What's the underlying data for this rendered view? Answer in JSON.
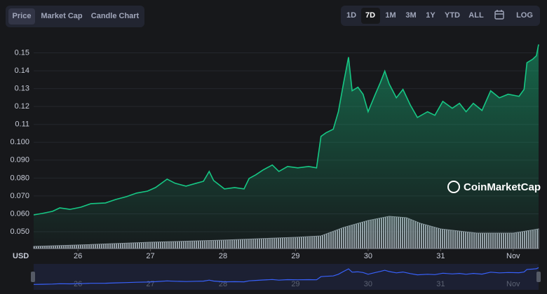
{
  "tabs": [
    "Price",
    "Market Cap",
    "Candle Chart"
  ],
  "ranges": [
    "1D",
    "7D",
    "1M",
    "3M",
    "1Y",
    "YTD",
    "ALL"
  ],
  "log_button": "LOG",
  "currency": "USD",
  "watermark": "CoinMarketCap",
  "chart_data": {
    "type": "area",
    "x": [
      25.39,
      25.51,
      25.65,
      25.75,
      25.89,
      26.04,
      26.18,
      26.38,
      26.52,
      26.67,
      26.81,
      26.96,
      27.07,
      27.23,
      27.34,
      27.49,
      27.63,
      27.73,
      27.81,
      27.87,
      28.02,
      28.16,
      28.29,
      28.36,
      28.45,
      28.55,
      28.68,
      28.77,
      28.89,
      29.03,
      29.18,
      29.29,
      29.35,
      29.42,
      29.52,
      29.59,
      29.66,
      29.73,
      29.78,
      29.86,
      29.93,
      30.0,
      30.1,
      30.17,
      30.23,
      30.29,
      30.39,
      30.48,
      30.58,
      30.68,
      30.82,
      30.92,
      31.03,
      31.16,
      31.26,
      31.35,
      31.45,
      31.57,
      31.69,
      31.81,
      31.93,
      32.08,
      32.15,
      32.19,
      32.27,
      32.32,
      32.35
    ],
    "series": [
      {
        "color": "#16c784",
        "values": [
          0.0594,
          0.0602,
          0.0614,
          0.0633,
          0.0625,
          0.0637,
          0.0657,
          0.0661,
          0.068,
          0.0696,
          0.0716,
          0.0727,
          0.0747,
          0.0794,
          0.0771,
          0.0755,
          0.0771,
          0.0782,
          0.0837,
          0.0786,
          0.0739,
          0.0747,
          0.0739,
          0.0798,
          0.0818,
          0.0845,
          0.0873,
          0.0837,
          0.0865,
          0.0857,
          0.0865,
          0.0857,
          0.1033,
          0.1053,
          0.1073,
          0.1171,
          0.1327,
          0.1476,
          0.1288,
          0.1308,
          0.1269,
          0.1171,
          0.1269,
          0.1335,
          0.1398,
          0.1327,
          0.1249,
          0.1296,
          0.121,
          0.1139,
          0.1171,
          0.1151,
          0.1229,
          0.119,
          0.1218,
          0.1171,
          0.1218,
          0.1178,
          0.1288,
          0.1249,
          0.1269,
          0.1257,
          0.1296,
          0.1445,
          0.1465,
          0.1484,
          0.1547
        ]
      }
    ],
    "xlim": [
      25.39,
      32.35
    ],
    "xticks": [
      {
        "value": 26,
        "label": "26"
      },
      {
        "value": 27,
        "label": "27"
      },
      {
        "value": 28,
        "label": "28"
      },
      {
        "value": 29,
        "label": "29"
      },
      {
        "value": 30,
        "label": "30"
      },
      {
        "value": 31,
        "label": "31"
      },
      {
        "value": 32,
        "label": "Nov"
      }
    ],
    "ylim": [
      0.0406,
      0.16
    ],
    "yticks": [
      {
        "value": 0.05,
        "label": "0.050"
      },
      {
        "value": 0.06,
        "label": "0.060"
      },
      {
        "value": 0.07,
        "label": "0.070"
      },
      {
        "value": 0.08,
        "label": "0.080"
      },
      {
        "value": 0.09,
        "label": "0.090"
      },
      {
        "value": 0.1,
        "label": "0.100"
      },
      0.11,
      0.12,
      0.13,
      0.14,
      0.15
    ],
    "grid": true,
    "volume": {
      "color": "#8a8f99",
      "x": [
        25.39,
        26,
        27,
        28,
        29,
        29.35,
        29.66,
        30,
        30.29,
        30.53,
        30.72,
        31,
        31.5,
        32,
        32.35
      ],
      "values": [
        3,
        5,
        9,
        12,
        16,
        18,
        30,
        40,
        46,
        44,
        36,
        28,
        22,
        22,
        28
      ],
      "ylim": [
        0,
        60
      ]
    }
  }
}
